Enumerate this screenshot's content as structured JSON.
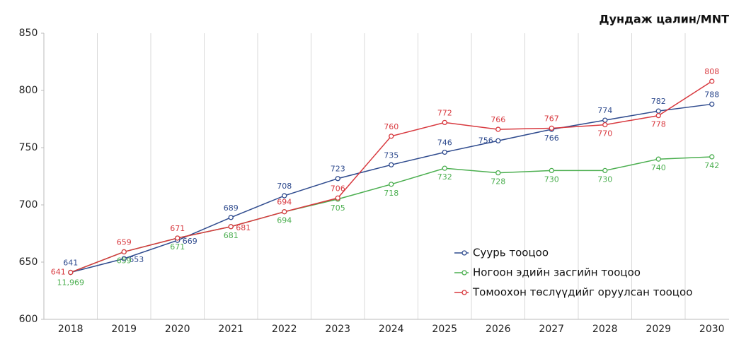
{
  "chart_data": {
    "type": "line",
    "title": "Дундаж цалин/MNT",
    "categories": [
      "2018",
      "2019",
      "2020",
      "2021",
      "2022",
      "2023",
      "2024",
      "2025",
      "2026",
      "2027",
      "2028",
      "2029",
      "2030"
    ],
    "series": [
      {
        "name": "Суурь тооцоо",
        "color": "#2f4b8e",
        "values": [
          641,
          653,
          669,
          689,
          708,
          723,
          735,
          746,
          756,
          766,
          774,
          782,
          788
        ]
      },
      {
        "name": "Ногоон эдийн засгийн тооцоо",
        "color": "#4caf50",
        "values": [
          641,
          659,
          671,
          681,
          694,
          705,
          718,
          732,
          728,
          730,
          730,
          740,
          742
        ],
        "value_labels": [
          null,
          "659",
          "671",
          "681",
          "694",
          "705",
          "718",
          "732",
          "728",
          "730",
          "730",
          "740",
          "742"
        ]
      },
      {
        "name": "Томоохон төслүүдийг оруулсан тооцоо",
        "color": "#d8393f",
        "values": [
          641,
          659,
          671,
          681,
          694,
          706,
          760,
          772,
          766,
          767,
          770,
          778,
          808
        ]
      }
    ],
    "annotations": [
      {
        "text": "11,969"
      }
    ],
    "ylim": [
      600,
      850
    ],
    "yticks": [
      600,
      650,
      700,
      750,
      800,
      850
    ],
    "grid": true
  }
}
